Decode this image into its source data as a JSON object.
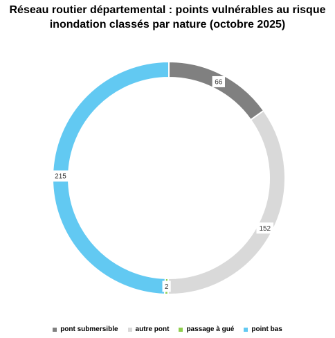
{
  "title_line1": "Réseau routier départemental : points vulnérables au risque",
  "title_line2": "inondation classés par nature (octobre 2025)",
  "chart_data": {
    "type": "pie",
    "donut": true,
    "title": "Réseau routier départemental : points vulnérables au risque inondation classés par nature (octobre 2025)",
    "categories": [
      "pont submersible",
      "autre pont",
      "passage à gué",
      "point bas"
    ],
    "values": [
      66,
      152,
      2,
      215
    ],
    "colors": [
      "#808080",
      "#d9d9d9",
      "#8fce4f",
      "#62c9f2"
    ],
    "data_labels": [
      "66",
      "152",
      "2",
      "215"
    ],
    "legend_position": "bottom",
    "start_angle": "top",
    "direction": "clockwise"
  }
}
